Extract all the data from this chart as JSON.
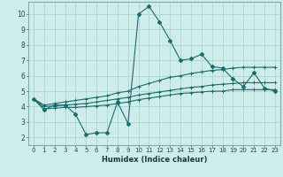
{
  "xlabel": "Humidex (Indice chaleur)",
  "xlim": [
    -0.5,
    23.5
  ],
  "ylim": [
    1.5,
    10.8
  ],
  "yticks": [
    2,
    3,
    4,
    5,
    6,
    7,
    8,
    9,
    10
  ],
  "xticks": [
    0,
    1,
    2,
    3,
    4,
    5,
    6,
    7,
    8,
    9,
    10,
    11,
    12,
    13,
    14,
    15,
    16,
    17,
    18,
    19,
    20,
    21,
    22,
    23
  ],
  "bg_color": "#ceecea",
  "grid_color": "#b0d8d4",
  "line_color": "#1a6b6b",
  "series": {
    "main": {
      "x": [
        0,
        1,
        2,
        3,
        4,
        5,
        6,
        7,
        8,
        9,
        10,
        11,
        12,
        13,
        14,
        15,
        16,
        17,
        18,
        19,
        20,
        21,
        22,
        23
      ],
      "y": [
        4.5,
        3.8,
        4.1,
        4.1,
        3.5,
        2.2,
        2.3,
        2.3,
        4.3,
        2.9,
        10.0,
        10.5,
        9.5,
        8.3,
        7.0,
        7.1,
        7.4,
        6.6,
        6.5,
        5.8,
        5.3,
        6.2,
        5.2,
        5.0
      ]
    },
    "upper": {
      "x": [
        0,
        1,
        2,
        3,
        4,
        5,
        6,
        7,
        8,
        9,
        10,
        11,
        12,
        13,
        14,
        15,
        16,
        17,
        18,
        19,
        20,
        21,
        22,
        23
      ],
      "y": [
        4.5,
        4.1,
        4.2,
        4.3,
        4.4,
        4.5,
        4.6,
        4.7,
        4.9,
        5.0,
        5.3,
        5.5,
        5.7,
        5.9,
        6.0,
        6.15,
        6.25,
        6.35,
        6.4,
        6.5,
        6.55,
        6.55,
        6.55,
        6.55
      ]
    },
    "mid": {
      "x": [
        0,
        1,
        2,
        3,
        4,
        5,
        6,
        7,
        8,
        9,
        10,
        11,
        12,
        13,
        14,
        15,
        16,
        17,
        18,
        19,
        20,
        21,
        22,
        23
      ],
      "y": [
        4.5,
        4.0,
        4.05,
        4.1,
        4.15,
        4.2,
        4.3,
        4.4,
        4.5,
        4.6,
        4.75,
        4.85,
        4.95,
        5.05,
        5.15,
        5.25,
        5.3,
        5.4,
        5.45,
        5.5,
        5.55,
        5.55,
        5.55,
        5.55
      ]
    },
    "lower": {
      "x": [
        0,
        1,
        2,
        3,
        4,
        5,
        6,
        7,
        8,
        9,
        10,
        11,
        12,
        13,
        14,
        15,
        16,
        17,
        18,
        19,
        20,
        21,
        22,
        23
      ],
      "y": [
        4.5,
        3.85,
        3.9,
        3.95,
        3.95,
        4.0,
        4.05,
        4.1,
        4.2,
        4.3,
        4.45,
        4.55,
        4.65,
        4.75,
        4.85,
        4.9,
        4.95,
        5.0,
        5.0,
        5.1,
        5.1,
        5.1,
        5.1,
        5.1
      ]
    }
  }
}
